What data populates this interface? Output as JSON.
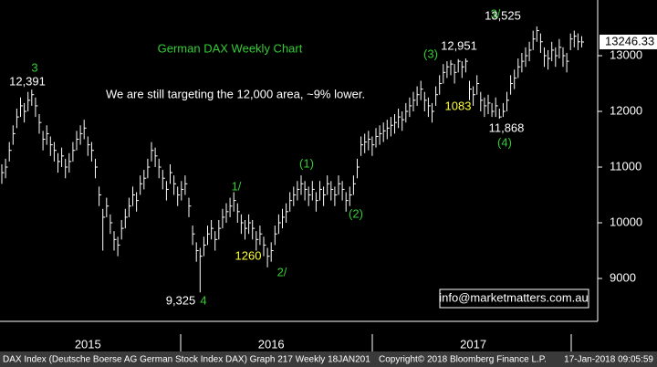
{
  "chart_data": {
    "type": "ohlc",
    "title": "German DAX Weekly Chart",
    "subtitle": "We are still targeting the 12,000 area, ~9% lower.",
    "bar_color": "#ffffff",
    "categories": [
      null,
      null,
      null,
      null,
      null,
      null,
      null,
      null,
      null,
      null,
      null,
      null,
      null,
      null,
      null,
      null,
      null,
      null,
      null,
      null,
      null,
      null,
      null,
      "2015",
      null,
      null,
      null,
      null,
      null,
      null,
      null,
      null,
      null,
      null,
      null,
      null,
      null,
      null,
      null,
      null,
      null,
      null,
      null,
      null,
      null,
      null,
      null,
      null,
      null,
      null,
      null,
      null,
      null,
      null,
      null,
      null,
      null,
      null,
      null,
      null,
      null,
      null,
      null,
      null,
      null,
      null,
      null,
      null,
      null,
      null,
      null,
      null,
      "2016",
      null,
      null,
      null,
      null,
      null,
      null,
      null,
      null,
      null,
      null,
      null,
      null,
      null,
      null,
      null,
      null,
      null,
      null,
      null,
      null,
      null,
      null,
      null,
      null,
      null,
      null,
      null,
      null,
      null,
      null,
      null,
      null,
      null,
      null,
      null,
      null,
      null,
      null,
      null,
      null,
      null,
      null,
      null,
      null,
      null,
      null,
      null,
      null,
      null,
      null,
      null,
      null,
      null,
      "2017",
      null,
      null,
      null,
      null,
      null,
      null,
      null,
      null,
      null,
      null,
      null,
      null,
      null,
      null,
      null,
      null,
      null,
      null,
      null,
      null,
      null,
      null,
      null,
      null,
      null,
      null,
      null,
      null,
      null
    ],
    "high": [
      11050,
      11150,
      11450,
      11750,
      12050,
      12250,
      12150,
      12350,
      12391,
      12250,
      11950,
      11650,
      11750,
      11550,
      11450,
      11250,
      11350,
      11150,
      11250,
      11450,
      11650,
      11750,
      11850,
      11550,
      11450,
      11150,
      10650,
      10250,
      10450,
      10150,
      9850,
      9750,
      10050,
      10250,
      10450,
      10650,
      10550,
      10850,
      10950,
      11150,
      11450,
      11350,
      11150,
      10950,
      10750,
      11050,
      10850,
      10650,
      10750,
      10850,
      10450,
      9950,
      9650,
      9550,
      9750,
      9950,
      10050,
      9850,
      10050,
      10250,
      10350,
      10450,
      10550,
      10350,
      10150,
      10050,
      10150,
      10050,
      9850,
      9950,
      9750,
      9550,
      9650,
      9950,
      10150,
      10250,
      10350,
      10550,
      10650,
      10750,
      10850,
      10750,
      10650,
      10750,
      10550,
      10750,
      10650,
      10850,
      10750,
      10650,
      10850,
      10750,
      10550,
      10650,
      10850,
      11150,
      11550,
      11600,
      11650,
      11550,
      11700,
      11750,
      11800,
      11850,
      11900,
      11950,
      12050,
      12000,
      12150,
      12250,
      12350,
      12450,
      12550,
      12350,
      12250,
      12150,
      12450,
      12650,
      12850,
      12900,
      12920,
      12850,
      12940,
      12900,
      12951,
      12550,
      12450,
      12650,
      12350,
      12250,
      12300,
      12150,
      12250,
      12050,
      12150,
      12350,
      12650,
      12750,
      12950,
      13050,
      13150,
      13250,
      13450,
      13525,
      13400,
      13150,
      13100,
      13250,
      13150,
      13300,
      13150,
      13050,
      13400,
      13450,
      13400,
      13350
    ],
    "low": [
      10700,
      10800,
      11100,
      11400,
      11700,
      11900,
      11800,
      12000,
      12100,
      11900,
      11600,
      11300,
      11400,
      11200,
      11100,
      10900,
      11000,
      10800,
      10900,
      11100,
      11300,
      11400,
      11500,
      11200,
      11100,
      10800,
      10300,
      9500,
      10100,
      9800,
      9500,
      9400,
      9700,
      9900,
      10100,
      10300,
      10200,
      10500,
      10600,
      10800,
      11100,
      11000,
      10800,
      10600,
      10400,
      10700,
      10500,
      10300,
      10400,
      10500,
      10100,
      9600,
      9300,
      8750,
      9400,
      9600,
      9700,
      9500,
      9700,
      9900,
      10000,
      10100,
      10200,
      10000,
      9800,
      9700,
      9800,
      9700,
      9500,
      9600,
      9400,
      9200,
      9300,
      9600,
      9800,
      9900,
      10000,
      10200,
      10300,
      10400,
      10500,
      10400,
      10300,
      10400,
      10200,
      10400,
      10300,
      10500,
      10400,
      10300,
      10500,
      10400,
      10200,
      10300,
      10500,
      10800,
      11200,
      11250,
      11300,
      11200,
      11350,
      11400,
      11450,
      11500,
      11550,
      11600,
      11700,
      11650,
      11800,
      11900,
      12000,
      12100,
      12200,
      12000,
      11900,
      11800,
      12100,
      12300,
      12500,
      12600,
      12650,
      12500,
      12700,
      12600,
      12700,
      12200,
      12100,
      12300,
      12000,
      11900,
      11950,
      11900,
      11900,
      11868,
      11900,
      12000,
      12300,
      12400,
      12600,
      12700,
      12800,
      12900,
      13100,
      13250,
      13050,
      12800,
      12750,
      12900,
      12800,
      12950,
      12800,
      12700,
      13100,
      13150,
      13100,
      13150
    ],
    "close": [
      10900,
      11000,
      11300,
      11600,
      11900,
      12100,
      12000,
      12200,
      12300,
      12100,
      11800,
      11500,
      11600,
      11400,
      11300,
      11100,
      11200,
      11000,
      11100,
      11300,
      11500,
      11600,
      11700,
      11400,
      11300,
      11000,
      10500,
      10100,
      10300,
      10000,
      9700,
      9600,
      9900,
      10100,
      10300,
      10500,
      10400,
      10700,
      10800,
      11000,
      11300,
      11200,
      11000,
      10800,
      10600,
      10900,
      10700,
      10500,
      10600,
      10700,
      10300,
      9800,
      9500,
      9400,
      9600,
      9800,
      9900,
      9700,
      9900,
      10100,
      10200,
      10300,
      10400,
      10200,
      10000,
      9900,
      10000,
      9900,
      9700,
      9800,
      9600,
      9400,
      9500,
      9800,
      10000,
      10100,
      10200,
      10400,
      10500,
      10600,
      10700,
      10600,
      10500,
      10600,
      10400,
      10600,
      10500,
      10700,
      10600,
      10500,
      10700,
      10600,
      10400,
      10500,
      10700,
      11000,
      11400,
      11450,
      11500,
      11400,
      11550,
      11600,
      11650,
      11700,
      11750,
      11800,
      11900,
      11850,
      12000,
      12100,
      12200,
      12300,
      12400,
      12200,
      12100,
      12000,
      12300,
      12500,
      12700,
      12800,
      12850,
      12700,
      12900,
      12800,
      12900,
      12400,
      12300,
      12500,
      12200,
      12100,
      12150,
      12000,
      12100,
      11900,
      12000,
      12200,
      12500,
      12600,
      12800,
      12900,
      13000,
      13100,
      13300,
      13450,
      13250,
      13000,
      12950,
      13100,
      13000,
      13150,
      13000,
      12900,
      13300,
      13350,
      13250,
      13246
    ],
    "ylim": [
      8230,
      14000
    ],
    "yticks": [
      9000,
      10000,
      11000,
      12000,
      13000
    ],
    "last_price": 13246.33,
    "annotations": [
      {
        "text": "3",
        "color": "#33cc33"
      },
      {
        "text": "12,391",
        "color": "#ffffff"
      },
      {
        "text": "9,325",
        "color": "#ffffff"
      },
      {
        "text": "4",
        "color": "#33cc33"
      },
      {
        "text": "1/",
        "color": "#33cc33"
      },
      {
        "text": "1260",
        "color": "#ffff33"
      },
      {
        "text": "2/",
        "color": "#33cc33"
      },
      {
        "text": "(1)",
        "color": "#33cc33"
      },
      {
        "text": "(2)",
        "color": "#33cc33"
      },
      {
        "text": "(3)",
        "color": "#33cc33"
      },
      {
        "text": "12,951",
        "color": "#ffffff"
      },
      {
        "text": "1083",
        "color": "#ffff33"
      },
      {
        "text": "11,868",
        "color": "#ffffff"
      },
      {
        "text": "(4)",
        "color": "#33cc33"
      },
      {
        "text": "3/",
        "color": "#33cc33"
      },
      {
        "text": "13,525",
        "color": "#ffffff"
      }
    ],
    "email": "info@marketmatters.com.au",
    "footer_left": "DAX Index (Deutsche Boerse AG German Stock Index DAX) Graph 217  Weekly 18JAN201",
    "footer_copyright": "Copyright© 2018 Bloomberg Finance L.P.",
    "footer_time": "17-Jan-2018 09:05:59"
  }
}
